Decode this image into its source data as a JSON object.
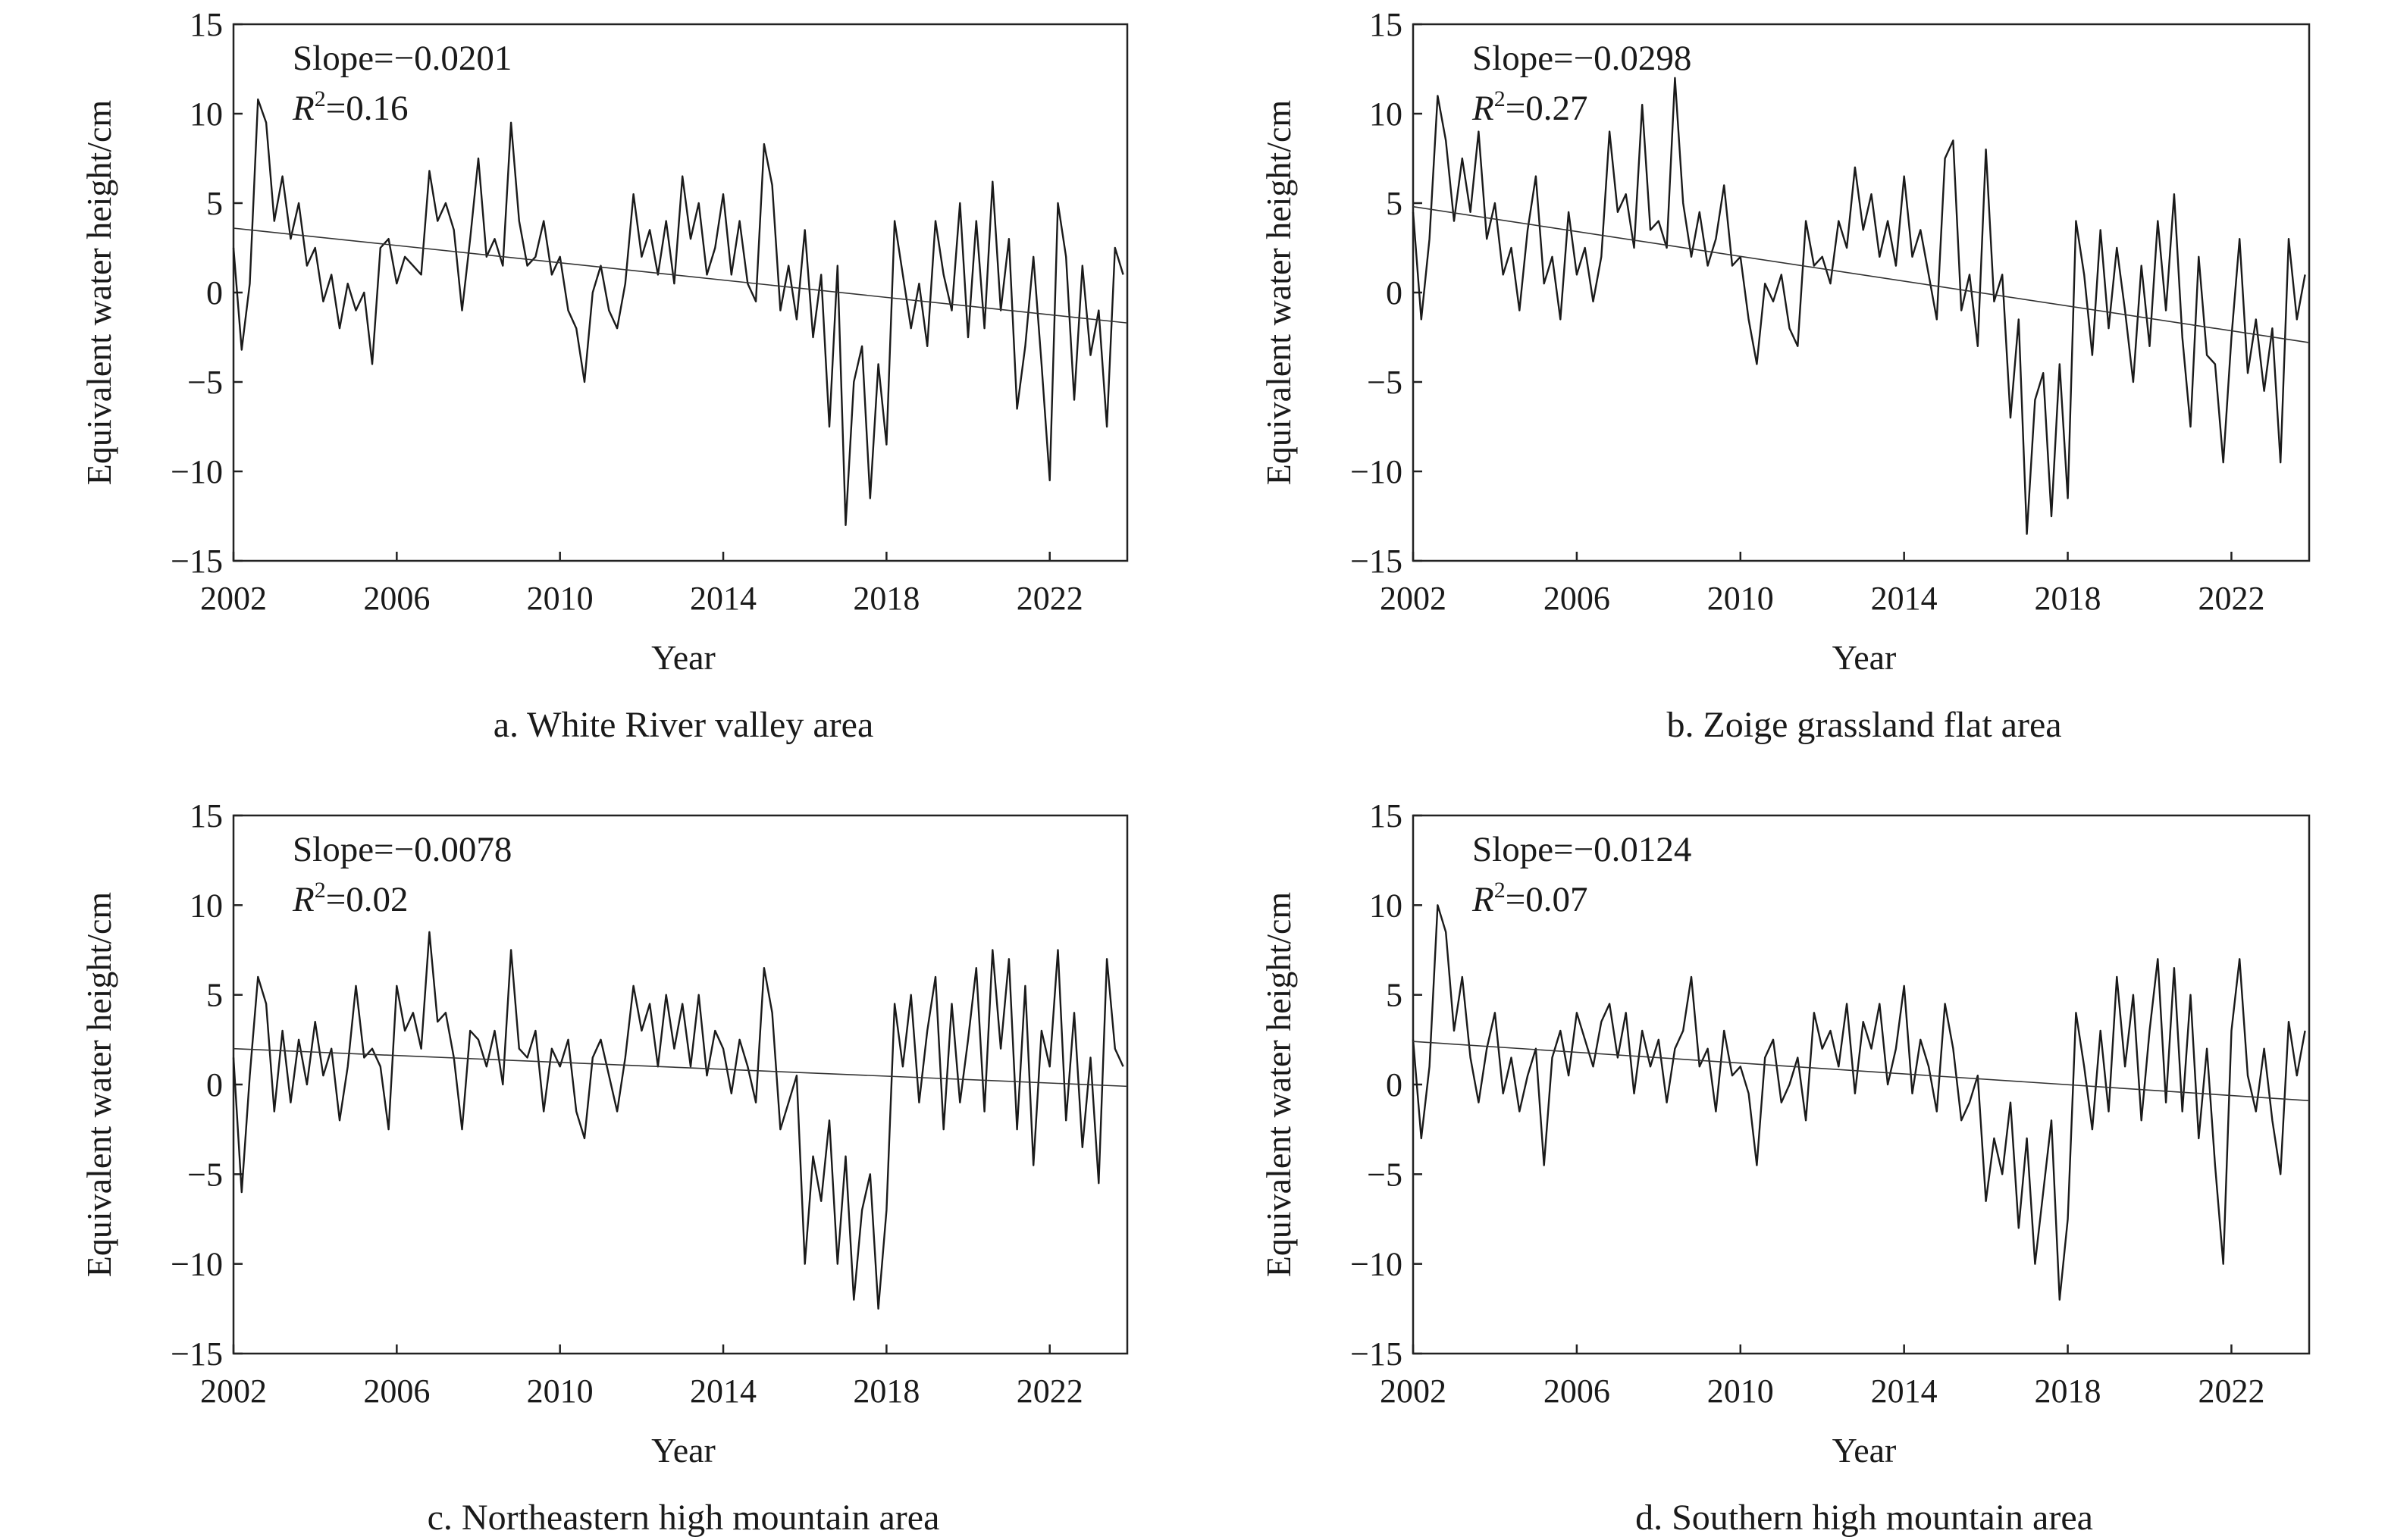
{
  "chart_data": [
    {
      "type": "line",
      "caption": "a. White River valley area",
      "xlabel": "Year",
      "ylabel": "Equivalent water height/cm",
      "xlim": [
        2002,
        2023.9
      ],
      "ylim": [
        -15,
        15
      ],
      "xticks": [
        2002,
        2006,
        2010,
        2014,
        2018,
        2022
      ],
      "yticks": [
        -15,
        -10,
        -5,
        0,
        5,
        10,
        15
      ],
      "annotation": {
        "slope": "Slope=−0.0201",
        "r2_value": "=0.16"
      },
      "trend": {
        "x": [
          2002,
          2023.9
        ],
        "y": [
          3.6,
          -1.7
        ]
      },
      "series": [
        {
          "x": [
            2002.0,
            2002.2,
            2002.4,
            2002.6,
            2002.8,
            2003.0,
            2003.2,
            2003.4,
            2003.6,
            2003.8,
            2004.0,
            2004.2,
            2004.4,
            2004.6,
            2004.8,
            2005.0,
            2005.2,
            2005.4,
            2005.6,
            2005.8,
            2006.0,
            2006.2,
            2006.4,
            2006.6,
            2006.8,
            2007.0,
            2007.2,
            2007.4,
            2007.6,
            2007.8,
            2008.0,
            2008.2,
            2008.4,
            2008.6,
            2008.8,
            2009.0,
            2009.2,
            2009.4,
            2009.6,
            2009.8,
            2010.0,
            2010.2,
            2010.4,
            2010.6,
            2010.8,
            2011.0,
            2011.2,
            2011.4,
            2011.6,
            2011.8,
            2012.0,
            2012.2,
            2012.4,
            2012.6,
            2012.8,
            2013.0,
            2013.2,
            2013.4,
            2013.6,
            2013.8,
            2014.0,
            2014.2,
            2014.4,
            2014.6,
            2014.8,
            2015.0,
            2015.2,
            2015.4,
            2015.6,
            2015.8,
            2016.0,
            2016.2,
            2016.4,
            2016.6,
            2016.8,
            2017.0,
            2017.2,
            2017.4,
            2017.6,
            2017.8,
            2018.0,
            2018.2,
            2018.4,
            2018.6,
            2018.8,
            2019.0,
            2019.2,
            2019.4,
            2019.6,
            2019.8,
            2020.0,
            2020.2,
            2020.4,
            2020.6,
            2020.8,
            2021.0,
            2021.2,
            2021.4,
            2021.6,
            2021.8,
            2022.0,
            2022.2,
            2022.4,
            2022.6,
            2022.8,
            2023.0,
            2023.2,
            2023.4,
            2023.6,
            2023.8
          ],
          "y": [
            2.5,
            -3.2,
            0.5,
            10.8,
            9.5,
            4.0,
            6.5,
            3.0,
            5.0,
            1.5,
            2.5,
            -0.5,
            1.0,
            -2.0,
            0.5,
            -1.0,
            0.0,
            -4.0,
            2.5,
            3.0,
            0.5,
            2.0,
            1.5,
            1.0,
            6.8,
            4.0,
            5.0,
            3.5,
            -1.0,
            3.0,
            7.5,
            2.0,
            3.0,
            1.5,
            9.5,
            4.0,
            1.5,
            2.0,
            4.0,
            1.0,
            2.0,
            -1.0,
            -2.0,
            -5.0,
            0.0,
            1.5,
            -1.0,
            -2.0,
            0.5,
            5.5,
            2.0,
            3.5,
            1.0,
            4.0,
            0.5,
            6.5,
            3.0,
            5.0,
            1.0,
            2.5,
            5.5,
            1.0,
            4.0,
            0.5,
            -0.5,
            8.3,
            6.0,
            -1.0,
            1.5,
            -1.5,
            3.5,
            -2.5,
            1.0,
            -7.5,
            1.5,
            -13.0,
            -5.0,
            -3.0,
            -11.5,
            -4.0,
            -8.5,
            4.0,
            1.0,
            -2.0,
            0.5,
            -3.0,
            4.0,
            1.0,
            -1.0,
            5.0,
            -2.5,
            4.0,
            -2.0,
            6.2,
            -1.0,
            3.0,
            -6.5,
            -3.0,
            2.0,
            -4.0,
            -10.5,
            5.0,
            2.0,
            -6.0,
            1.5,
            -3.5,
            -1.0,
            -7.5,
            2.5,
            1.0
          ]
        }
      ]
    },
    {
      "type": "line",
      "caption": "b. Zoige grassland flat area",
      "xlabel": "Year",
      "ylabel": "Equivalent water height/cm",
      "xlim": [
        2002,
        2023.9
      ],
      "ylim": [
        -15,
        15
      ],
      "xticks": [
        2002,
        2006,
        2010,
        2014,
        2018,
        2022
      ],
      "yticks": [
        -15,
        -10,
        -5,
        0,
        5,
        10,
        15
      ],
      "annotation": {
        "slope": "Slope=−0.0298",
        "r2_value": "=0.27"
      },
      "trend": {
        "x": [
          2002,
          2023.9
        ],
        "y": [
          4.8,
          -2.8
        ]
      },
      "series": [
        {
          "x": [
            2002.0,
            2002.2,
            2002.4,
            2002.6,
            2002.8,
            2003.0,
            2003.2,
            2003.4,
            2003.6,
            2003.8,
            2004.0,
            2004.2,
            2004.4,
            2004.6,
            2004.8,
            2005.0,
            2005.2,
            2005.4,
            2005.6,
            2005.8,
            2006.0,
            2006.2,
            2006.4,
            2006.6,
            2006.8,
            2007.0,
            2007.2,
            2007.4,
            2007.6,
            2007.8,
            2008.0,
            2008.2,
            2008.4,
            2008.6,
            2008.8,
            2009.0,
            2009.2,
            2009.4,
            2009.6,
            2009.8,
            2010.0,
            2010.2,
            2010.4,
            2010.6,
            2010.8,
            2011.0,
            2011.2,
            2011.4,
            2011.6,
            2011.8,
            2012.0,
            2012.2,
            2012.4,
            2012.6,
            2012.8,
            2013.0,
            2013.2,
            2013.4,
            2013.6,
            2013.8,
            2014.0,
            2014.2,
            2014.4,
            2014.6,
            2014.8,
            2015.0,
            2015.2,
            2015.4,
            2015.6,
            2015.8,
            2016.0,
            2016.2,
            2016.4,
            2016.6,
            2016.8,
            2017.0,
            2017.2,
            2017.4,
            2017.6,
            2017.8,
            2018.0,
            2018.2,
            2018.4,
            2018.6,
            2018.8,
            2019.0,
            2019.2,
            2019.4,
            2019.6,
            2019.8,
            2020.0,
            2020.2,
            2020.4,
            2020.6,
            2020.8,
            2021.0,
            2021.2,
            2021.4,
            2021.6,
            2021.8,
            2022.0,
            2022.2,
            2022.4,
            2022.6,
            2022.8,
            2023.0,
            2023.2,
            2023.4,
            2023.6,
            2023.8
          ],
          "y": [
            4.5,
            -1.5,
            3.0,
            11.0,
            8.5,
            4.0,
            7.5,
            4.5,
            9.0,
            3.0,
            5.0,
            1.0,
            2.5,
            -1.0,
            3.5,
            6.5,
            0.5,
            2.0,
            -1.5,
            4.5,
            1.0,
            2.5,
            -0.5,
            2.0,
            9.0,
            4.5,
            5.5,
            2.5,
            10.5,
            3.5,
            4.0,
            2.5,
            12.0,
            5.0,
            2.0,
            4.5,
            1.5,
            3.0,
            6.0,
            1.5,
            2.0,
            -1.5,
            -4.0,
            0.5,
            -0.5,
            1.0,
            -2.0,
            -3.0,
            4.0,
            1.5,
            2.0,
            0.5,
            4.0,
            2.5,
            7.0,
            3.5,
            5.5,
            2.0,
            4.0,
            1.5,
            6.5,
            2.0,
            3.5,
            1.0,
            -1.5,
            7.5,
            8.5,
            -1.0,
            1.0,
            -3.0,
            8.0,
            -0.5,
            1.0,
            -7.0,
            -1.5,
            -13.5,
            -6.0,
            -4.5,
            -12.5,
            -4.0,
            -11.5,
            4.0,
            1.0,
            -3.5,
            3.5,
            -2.0,
            2.5,
            -1.0,
            -5.0,
            1.5,
            -3.0,
            4.0,
            -1.0,
            5.5,
            -2.5,
            -7.5,
            2.0,
            -3.5,
            -4.0,
            -9.5,
            -2.5,
            3.0,
            -4.5,
            -1.5,
            -5.5,
            -2.0,
            -9.5,
            3.0,
            -1.5,
            1.0
          ]
        }
      ]
    },
    {
      "type": "line",
      "caption": "c. Northeastern high mountain area",
      "xlabel": "Year",
      "ylabel": "Equivalent water height/cm",
      "xlim": [
        2002,
        2023.9
      ],
      "ylim": [
        -15,
        15
      ],
      "xticks": [
        2002,
        2006,
        2010,
        2014,
        2018,
        2022
      ],
      "yticks": [
        -15,
        -10,
        -5,
        0,
        5,
        10,
        15
      ],
      "annotation": {
        "slope": "Slope=−0.0078",
        "r2_value": "=0.02"
      },
      "trend": {
        "x": [
          2002,
          2023.9
        ],
        "y": [
          2.0,
          -0.1
        ]
      },
      "series": [
        {
          "x": [
            2002.0,
            2002.2,
            2002.4,
            2002.6,
            2002.8,
            2003.0,
            2003.2,
            2003.4,
            2003.6,
            2003.8,
            2004.0,
            2004.2,
            2004.4,
            2004.6,
            2004.8,
            2005.0,
            2005.2,
            2005.4,
            2005.6,
            2005.8,
            2006.0,
            2006.2,
            2006.4,
            2006.6,
            2006.8,
            2007.0,
            2007.2,
            2007.4,
            2007.6,
            2007.8,
            2008.0,
            2008.2,
            2008.4,
            2008.6,
            2008.8,
            2009.0,
            2009.2,
            2009.4,
            2009.6,
            2009.8,
            2010.0,
            2010.2,
            2010.4,
            2010.6,
            2010.8,
            2011.0,
            2011.2,
            2011.4,
            2011.6,
            2011.8,
            2012.0,
            2012.2,
            2012.4,
            2012.6,
            2012.8,
            2013.0,
            2013.2,
            2013.4,
            2013.6,
            2013.8,
            2014.0,
            2014.2,
            2014.4,
            2014.6,
            2014.8,
            2015.0,
            2015.2,
            2015.4,
            2015.6,
            2015.8,
            2016.0,
            2016.2,
            2016.4,
            2016.6,
            2016.8,
            2017.0,
            2017.2,
            2017.4,
            2017.6,
            2017.8,
            2018.0,
            2018.2,
            2018.4,
            2018.6,
            2018.8,
            2019.0,
            2019.2,
            2019.4,
            2019.6,
            2019.8,
            2020.0,
            2020.2,
            2020.4,
            2020.6,
            2020.8,
            2021.0,
            2021.2,
            2021.4,
            2021.6,
            2021.8,
            2022.0,
            2022.2,
            2022.4,
            2022.6,
            2022.8,
            2023.0,
            2023.2,
            2023.4,
            2023.6,
            2023.8
          ],
          "y": [
            1.5,
            -6.0,
            0.5,
            6.0,
            4.5,
            -1.5,
            3.0,
            -1.0,
            2.5,
            0.0,
            3.5,
            0.5,
            2.0,
            -2.0,
            1.0,
            5.5,
            1.5,
            2.0,
            1.0,
            -2.5,
            5.5,
            3.0,
            4.0,
            2.0,
            8.5,
            3.5,
            4.0,
            1.5,
            -2.5,
            3.0,
            2.5,
            1.0,
            3.0,
            0.0,
            7.5,
            2.0,
            1.5,
            3.0,
            -1.5,
            2.0,
            1.0,
            2.5,
            -1.5,
            -3.0,
            1.5,
            2.5,
            0.5,
            -1.5,
            1.5,
            5.5,
            3.0,
            4.5,
            1.0,
            5.0,
            2.0,
            4.5,
            1.0,
            5.0,
            0.5,
            3.0,
            2.0,
            -0.5,
            2.5,
            1.0,
            -1.0,
            6.5,
            4.0,
            -2.5,
            -1.0,
            0.5,
            -10.0,
            -4.0,
            -6.5,
            -2.0,
            -10.0,
            -4.0,
            -12.0,
            -7.0,
            -5.0,
            -12.5,
            -7.0,
            4.5,
            1.0,
            5.0,
            -1.0,
            3.0,
            6.0,
            -2.5,
            4.5,
            -1.0,
            2.5,
            6.5,
            -1.5,
            7.5,
            2.0,
            7.0,
            -2.5,
            5.5,
            -4.5,
            3.0,
            1.0,
            7.5,
            -2.0,
            4.0,
            -3.5,
            1.5,
            -5.5,
            7.0,
            2.0,
            1.0
          ]
        }
      ]
    },
    {
      "type": "line",
      "caption": "d. Southern high mountain area",
      "xlabel": "Year",
      "ylabel": "Equivalent water height/cm",
      "xlim": [
        2002,
        2023.9
      ],
      "ylim": [
        -15,
        15
      ],
      "xticks": [
        2002,
        2006,
        2010,
        2014,
        2018,
        2022
      ],
      "yticks": [
        -15,
        -10,
        -5,
        0,
        5,
        10,
        15
      ],
      "annotation": {
        "slope": "Slope=−0.0124",
        "r2_value": "=0.07"
      },
      "trend": {
        "x": [
          2002,
          2023.9
        ],
        "y": [
          2.4,
          -0.9
        ]
      },
      "series": [
        {
          "x": [
            2002.0,
            2002.2,
            2002.4,
            2002.6,
            2002.8,
            2003.0,
            2003.2,
            2003.4,
            2003.6,
            2003.8,
            2004.0,
            2004.2,
            2004.4,
            2004.6,
            2004.8,
            2005.0,
            2005.2,
            2005.4,
            2005.6,
            2005.8,
            2006.0,
            2006.2,
            2006.4,
            2006.6,
            2006.8,
            2007.0,
            2007.2,
            2007.4,
            2007.6,
            2007.8,
            2008.0,
            2008.2,
            2008.4,
            2008.6,
            2008.8,
            2009.0,
            2009.2,
            2009.4,
            2009.6,
            2009.8,
            2010.0,
            2010.2,
            2010.4,
            2010.6,
            2010.8,
            2011.0,
            2011.2,
            2011.4,
            2011.6,
            2011.8,
            2012.0,
            2012.2,
            2012.4,
            2012.6,
            2012.8,
            2013.0,
            2013.2,
            2013.4,
            2013.6,
            2013.8,
            2014.0,
            2014.2,
            2014.4,
            2014.6,
            2014.8,
            2015.0,
            2015.2,
            2015.4,
            2015.6,
            2015.8,
            2016.0,
            2016.2,
            2016.4,
            2016.6,
            2016.8,
            2017.0,
            2017.2,
            2017.4,
            2017.6,
            2017.8,
            2018.0,
            2018.2,
            2018.4,
            2018.6,
            2018.8,
            2019.0,
            2019.2,
            2019.4,
            2019.6,
            2019.8,
            2020.0,
            2020.2,
            2020.4,
            2020.6,
            2020.8,
            2021.0,
            2021.2,
            2021.4,
            2021.6,
            2021.8,
            2022.0,
            2022.2,
            2022.4,
            2022.6,
            2022.8,
            2023.0,
            2023.2,
            2023.4,
            2023.6,
            2023.8
          ],
          "y": [
            2.5,
            -3.0,
            1.0,
            10.0,
            8.5,
            3.0,
            6.0,
            1.5,
            -1.0,
            2.0,
            4.0,
            -0.5,
            1.5,
            -1.5,
            0.5,
            2.0,
            -4.5,
            1.5,
            3.0,
            0.5,
            4.0,
            2.5,
            1.0,
            3.5,
            4.5,
            1.5,
            4.0,
            -0.5,
            3.0,
            1.0,
            2.5,
            -1.0,
            2.0,
            3.0,
            6.0,
            1.0,
            2.0,
            -1.5,
            3.0,
            0.5,
            1.0,
            -0.5,
            -4.5,
            1.5,
            2.5,
            -1.0,
            0.0,
            1.5,
            -2.0,
            4.0,
            2.0,
            3.0,
            1.0,
            4.5,
            -0.5,
            3.5,
            2.0,
            4.5,
            0.0,
            2.0,
            5.5,
            -0.5,
            2.5,
            1.0,
            -1.5,
            4.5,
            2.0,
            -2.0,
            -1.0,
            0.5,
            -6.5,
            -3.0,
            -5.0,
            -1.0,
            -8.0,
            -3.0,
            -10.0,
            -6.0,
            -2.0,
            -12.0,
            -7.5,
            4.0,
            1.0,
            -2.5,
            3.0,
            -1.5,
            6.0,
            1.0,
            5.0,
            -2.0,
            3.0,
            7.0,
            -1.0,
            6.5,
            -1.5,
            5.0,
            -3.0,
            2.0,
            -4.5,
            -10.0,
            3.0,
            7.0,
            0.5,
            -1.5,
            2.0,
            -2.0,
            -5.0,
            3.5,
            0.5,
            3.0
          ]
        }
      ]
    }
  ]
}
